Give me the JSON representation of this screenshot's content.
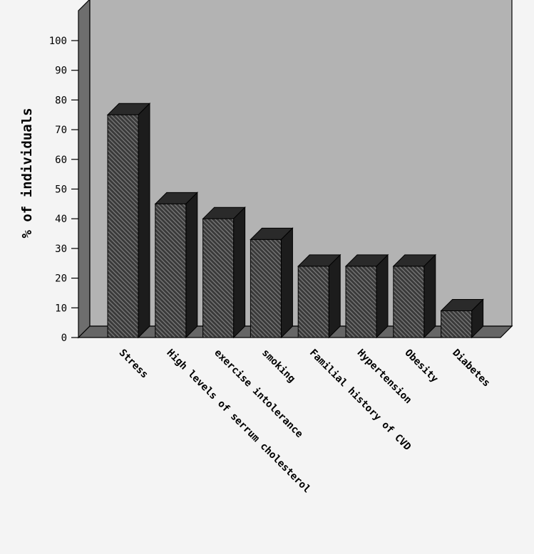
{
  "chart_data": {
    "type": "bar",
    "title": "",
    "xlabel": "",
    "ylabel": "% of individuals",
    "ylim": [
      0,
      100
    ],
    "yticks": [
      0,
      10,
      20,
      30,
      40,
      50,
      60,
      70,
      80,
      90,
      100
    ],
    "grid": false,
    "categories": [
      "Stress",
      "High levels of serrum cholesterol",
      "exercise intolerance",
      "smoking",
      "Familial history of CVD",
      "Hypertension",
      "Obesity",
      "Diabetes"
    ],
    "values": [
      75,
      45,
      40,
      33,
      24,
      24,
      24,
      9
    ],
    "colors": {
      "back_wall": "#b3b3b3",
      "floor": "#666666",
      "side_wall": "#6e6e6e",
      "bar_front": "#3a3a3a",
      "bar_hatch": "#7a7a7a",
      "bar_top": "#2a2a2a",
      "bar_side": "#1c1c1c"
    }
  }
}
